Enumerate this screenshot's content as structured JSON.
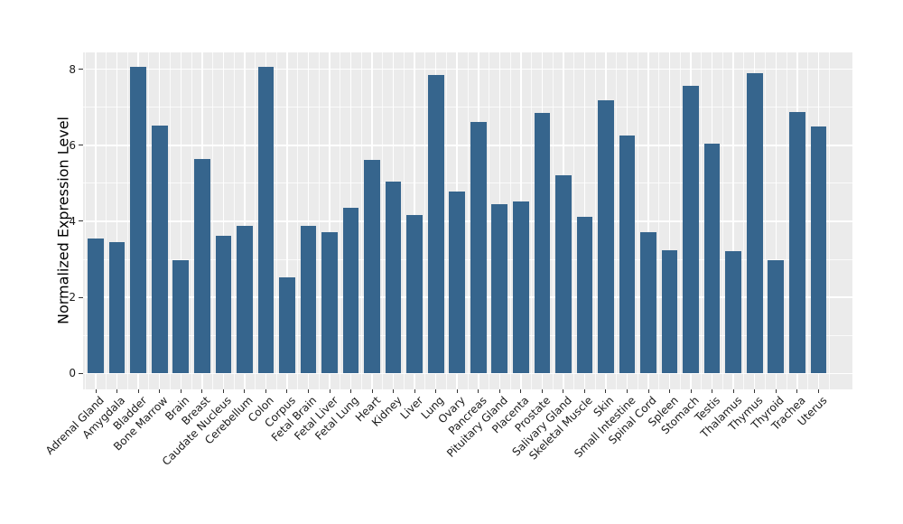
{
  "chart_data": {
    "type": "bar",
    "title": "",
    "xlabel": "",
    "ylabel": "Normalized Expression Level",
    "categories": [
      "Adrenal Gland",
      "Amygdala",
      "Bladder",
      "Bone Marrow",
      "Brain",
      "Breast",
      "Caudate Nucleus",
      "Cerebellum",
      "Colon",
      "Corpus",
      "Fetal Brain",
      "Fetal Liver",
      "Fetal Lung",
      "Heart",
      "Kidney",
      "Liver",
      "Lung",
      "Ovary",
      "Pancreas",
      "Pituitary Gland",
      "Placenta",
      "Prostate",
      "Salivary Gland",
      "Skeletal Muscle",
      "Skin",
      "Small Intestine",
      "Spinal Cord",
      "Spleen",
      "Stomach",
      "Testis",
      "Thalamus",
      "Thymus",
      "Thyroid",
      "Trachea",
      "Uterus"
    ],
    "values": [
      3.55,
      3.46,
      8.07,
      6.52,
      2.98,
      5.64,
      3.63,
      3.88,
      8.06,
      2.52,
      3.87,
      3.72,
      4.36,
      5.61,
      5.05,
      4.16,
      7.86,
      4.79,
      6.61,
      4.45,
      4.53,
      6.84,
      5.22,
      4.13,
      7.19,
      6.26,
      3.72,
      3.24,
      7.56,
      6.04,
      3.22,
      7.9,
      2.97,
      6.87,
      6.5
    ],
    "ytick_labels": [
      "0",
      "2",
      "4",
      "6",
      "8"
    ],
    "yticks_major": [
      0,
      2,
      4,
      6,
      8
    ],
    "yticks_minor": [
      1,
      3,
      5,
      7
    ],
    "ylim": [
      0,
      8.44
    ],
    "x_tick_rotation_deg": 45,
    "legend_position": "none",
    "grid": "major-and-minor-white",
    "colors": {
      "bar_fill": "#36658D",
      "panel_background": "#EBEBEB",
      "gridline": "#FFFFFF",
      "tick_mark": "#333333",
      "tick_text": "#1A1A1A",
      "axis_title_text": "#000000"
    }
  }
}
